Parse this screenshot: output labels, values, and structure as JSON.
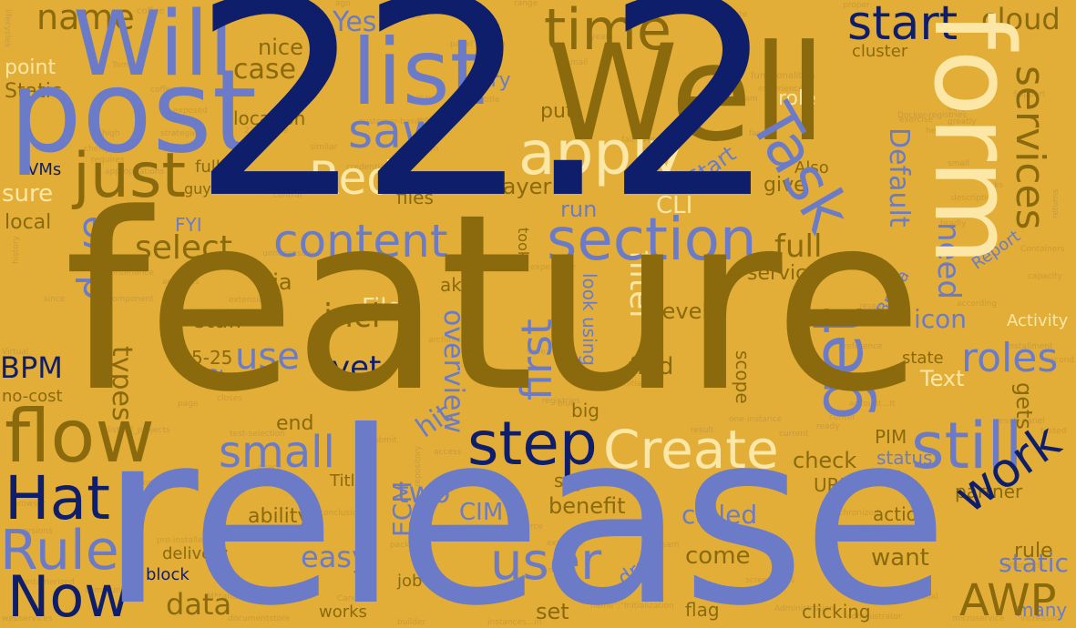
{
  "palette": {
    "background": "#E2AE38",
    "dark_gold": "#8A6A0C",
    "navy": "#0F1E6B",
    "periwinkle": "#6B7BC8",
    "cream": "#FCE7A6",
    "faint": "#C99A3A"
  },
  "words": {
    "w_222": "22.2",
    "feature": "feature",
    "release": "release",
    "well": "Well",
    "form": "form",
    "post": "post",
    "list": "list",
    "will": "Will",
    "time": "time",
    "start": "start",
    "cloud": "cloud",
    "name": "name",
    "apply": "apply",
    "saw": "saw",
    "task": "Task",
    "just": "just",
    "red": "Red",
    "section": "section",
    "content": "content",
    "select": "select",
    "flow": "flow",
    "step": "step",
    "create": "Create",
    "still": "still",
    "small": "small",
    "hat": "Hat",
    "rule": "Rule",
    "now": "Now",
    "user": "user",
    "work": "work",
    "awp": "AWP",
    "get": "get",
    "first": "first",
    "use": "use",
    "dive": "dive",
    "bpm": "BPM",
    "roles": "roles",
    "services": "services",
    "default": "Default",
    "full": "full",
    "need": "need",
    "filter": "filter",
    "yet": "yet",
    "types": "types",
    "incl": "incl",
    "stuff": "stuff",
    "file": "File",
    "via": "via",
    "overview": "overview",
    "hit": "hit",
    "two": "two",
    "easy": "easy",
    "data": "data",
    "ecm": "ECM",
    "cim": "CIM",
    "benefit": "benefit",
    "called": "called",
    "come": "come",
    "want": "want",
    "static": "static",
    "action": "action",
    "icon": "icon",
    "text": "Text",
    "gets": "gets",
    "check": "check",
    "pim": "PIM",
    "status": "status",
    "field": "field",
    "url": "URL",
    "partner": "partner",
    "case": "case",
    "nice": "nice",
    "point": "point",
    "static2": "Static",
    "yes": "Yes",
    "location": "location",
    "sure": "sure",
    "local": "local",
    "vms": "VMs",
    "fully": "fully",
    "guy": "guy",
    "fyi": "FYI",
    "layer": "layer",
    "cli": "CLI",
    "run": "run",
    "give": "give",
    "also": "Also",
    "role": "role",
    "cluster": "cluster",
    "start2": "Start",
    "report": "Report",
    "brava": "Brava",
    "activity": "Activity",
    "service": "service",
    "level": "level",
    "find": "find",
    "look_using": "look using",
    "took": "took",
    "five25": "5-25",
    "step2": "Step",
    "nocost": "no-cost",
    "end": "end",
    "scope": "scope",
    "state": "state",
    "aka": "aka",
    "files": "files",
    "try": "try",
    "put": "put",
    "big": "big",
    "title": "Title",
    "ability": "ability",
    "delivery": "delivery",
    "block": "block",
    "works": "works",
    "job": "job",
    "set": "set",
    "draft": "draft",
    "flag": "flag",
    "clicking": "clicking",
    "say": "say",
    "rule2": "rule",
    "many": "many",
    "t_coffee": "coffee",
    "t_tomcat": "Tomcat",
    "t_lifecycles": "lifecycles",
    "t_exposed": "exposed",
    "t_high": "high",
    "t_strategie": "strategie",
    "t_cherry": "cherry",
    "t_requires": "requires",
    "t_appropriations": "appropriations",
    "t_history": "history",
    "t_maintenance": "maintenance",
    "t_activities": "activities",
    "t_component": "component",
    "t_since": "since",
    "t_virtual": "Virtual",
    "t_browser": "browser",
    "t_versions": "versions",
    "t_manufacturer": "M**anufacturer",
    "t_documentstore": "documentstore",
    "t_webservices": "webservices",
    "t_communicate": "communicate",
    "t_contamerized": "contamerized",
    "t_preinstalled": "pre-installed",
    "t_cancel": "Cancel",
    "t_administration": "Administration",
    "t_administrator": "administrator",
    "t_microservice": "microservice",
    "t_increased": "increased",
    "t_screenshots": "screenshots",
    "t_individual": "individual",
    "t_differently": "differently",
    "t_customerbase": "customer-base",
    "t_credentials": "credentials",
    "t_docker": "Docker-registries",
    "t_functionalities": "functionalities",
    "t_capacity": "capacity",
    "t_installment": "installment",
    "t_second": "second",
    "t_resultpanel": "result-panel",
    "t_accordingly": "according",
    "t_containers": "Containers",
    "t_returns": "returns",
    "t_center": "center",
    "t_ready": "ready",
    "t_account": "account...It",
    "t_registries": "registries",
    "t_closes": "closes",
    "t_initialize": "initialize",
    "t_blue": "blue",
    "t_real": "real",
    "t_save": "save",
    "t_research": "research",
    "t_preference": "preference",
    "t_support": "Support",
    "t_team": "Team",
    "t_experiences": "experiences",
    "t_greatly": "greatly",
    "t_code": "code",
    "t_small": "small",
    "t_asks": "asks",
    "t_exercise": "exercise",
    "t_help": "help",
    "t_failover": "fail-over",
    "t_testview": "test-view",
    "t_indication": "indication",
    "t_far": "far",
    "t_amazon": "Amazon",
    "t_similar": "similar",
    "t_central": "central",
    "t_extension": "extension",
    "t_unnecessary": "unnecessary",
    "t_experience": "experience",
    "t_page": "page",
    "t_listallprojects": "list_all_projects",
    "t_compose": "compose",
    "t_terminate": "terminate",
    "t_proper": "proper",
    "t_range": "range",
    "t_ago": "ago",
    "t_consider": "consider",
    "t_details": "details",
    "t_leave": "leave",
    "t_title": "title",
    "t_mail": "mail",
    "t_year": "years",
    "t_repository": "repository",
    "t_access": "access",
    "t_packaging": "packaging",
    "t_exposure": "exposure",
    "t_architecture": "architecture",
    "t_submit": "submit",
    "t_source": "source",
    "t_email": "e-mail",
    "t_never": "never",
    "t_fans": "fans",
    "t_instances": "instances...in",
    "t_initialization": "name\":\"Initialization",
    "t_builder": "builder",
    "t_team2": "team",
    "t_testselection": "test-selection",
    "t_configuration": "configuration",
    "t_conclusion": "conclusion",
    "t_space": "space",
    "t_behaviour": "behaviour",
    "t_synchronized": "synchronized",
    "t_oneinstance": "one-instance",
    "t_current": "current",
    "t_result": "result",
    "t_bradly": "bradly",
    "t_description": "description",
    "t_couple": "couple",
    "t_tested": "tested",
    "t_panel": "panel's...data",
    "t_tcf": "22.2...Nice",
    "t_nice2": "well....we"
  }
}
